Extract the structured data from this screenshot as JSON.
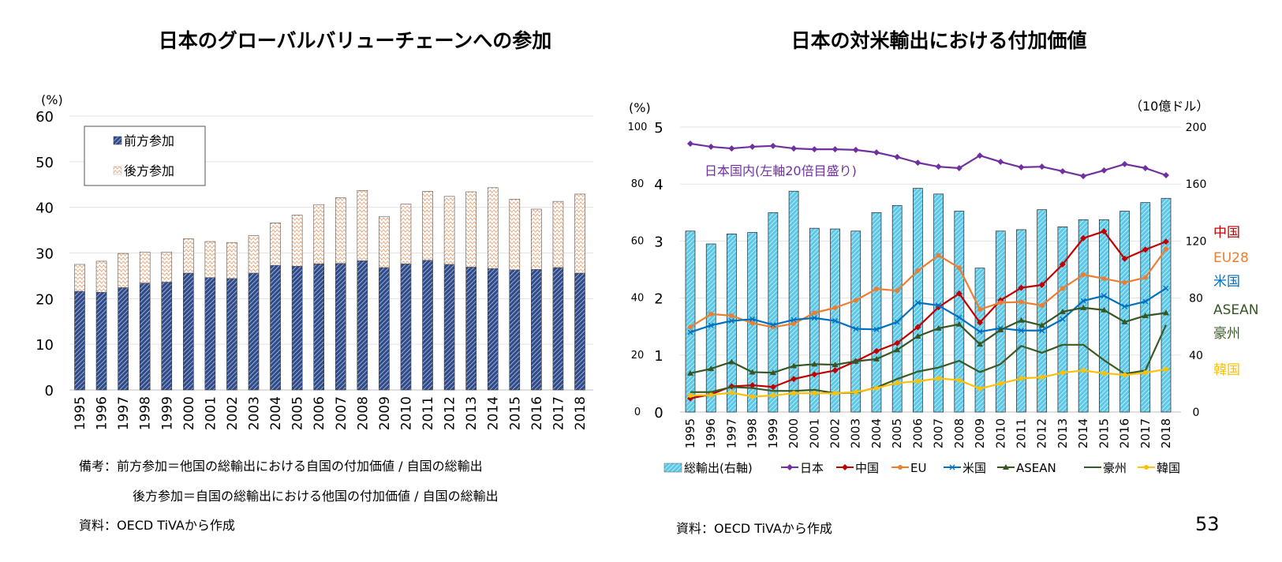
{
  "page_number": "53",
  "chart_data": [
    {
      "type": "bar",
      "stacked": true,
      "title": "日本のグローバルバリューチェーンへの参加",
      "ylabel": "(%)",
      "ylim": [
        0,
        60
      ],
      "yticks": [
        0,
        10,
        20,
        30,
        40,
        50,
        60
      ],
      "grid": true,
      "legend_position": "top-left",
      "categories": [
        "1995",
        "1996",
        "1997",
        "1998",
        "1999",
        "2000",
        "2001",
        "2002",
        "2003",
        "2004",
        "2005",
        "2006",
        "2007",
        "2008",
        "2009",
        "2010",
        "2011",
        "2012",
        "2013",
        "2014",
        "2015",
        "2016",
        "2017",
        "2018"
      ],
      "series": [
        {
          "name": "前方参加",
          "color": "#2f4b8a",
          "values": [
            21.6,
            21.4,
            22.4,
            23.4,
            23.6,
            25.6,
            24.6,
            24.4,
            25.6,
            27.3,
            27.1,
            27.6,
            27.7,
            28.3,
            26.8,
            27.6,
            28.4,
            27.5,
            26.9,
            26.6,
            26.3,
            26.4,
            26.8,
            25.6
          ]
        },
        {
          "name": "後方参加",
          "color": "#e8a070",
          "values": [
            5.9,
            6.8,
            7.5,
            6.8,
            6.6,
            7.5,
            7.9,
            7.9,
            8.2,
            9.3,
            11.2,
            13.0,
            14.4,
            15.4,
            11.2,
            13.1,
            15.1,
            14.9,
            16.5,
            17.7,
            15.5,
            13.2,
            14.5,
            17.3
          ]
        }
      ],
      "notes": [
        "備考：前方参加＝他国の総輸出における自国の付加価値 / 自国の総輸出",
        "後方参加＝自国の総輸出における他国の付加価値 / 自国の総輸出",
        "資料：OECD TiVAから作成"
      ]
    },
    {
      "type": "line",
      "title": "日本の対米輸出における付加価値",
      "ylabel": "(%)",
      "ylabel_right": "（10億ドル）",
      "ylim": [
        0,
        5
      ],
      "ylim_secondary_left": [
        0,
        100
      ],
      "ylim_right": [
        0,
        200
      ],
      "yticks": [
        0,
        1,
        2,
        3,
        4,
        5
      ],
      "yticks_secondary_left": [
        0,
        20,
        40,
        60,
        80,
        100
      ],
      "yticks_right": [
        0,
        40,
        80,
        120,
        160,
        200
      ],
      "grid": true,
      "legend_position": "bottom",
      "annotation": "日本国内(左軸20倍目盛り)",
      "categories": [
        "1995",
        "1996",
        "1997",
        "1998",
        "1999",
        "2000",
        "2001",
        "2002",
        "2003",
        "2004",
        "2005",
        "2006",
        "2007",
        "2008",
        "2009",
        "2010",
        "2011",
        "2012",
        "2013",
        "2014",
        "2015",
        "2016",
        "2017",
        "2018"
      ],
      "bar_series": {
        "name": "総輸出(右軸)",
        "color": "#5bc8e8",
        "axis": "right",
        "values": [
          127,
          118,
          125,
          126,
          140,
          155,
          129,
          128.5,
          127,
          140,
          145,
          157,
          153,
          141,
          101,
          127,
          128,
          142,
          130,
          135,
          135,
          141,
          147,
          150
        ]
      },
      "series": [
        {
          "name": "日本",
          "label": "",
          "color": "#7030a0",
          "marker": "diamond",
          "axis": "secondary_left",
          "values": [
            94.2,
            93.1,
            92.5,
            93.1,
            93.4,
            92.5,
            92.2,
            92.2,
            92.0,
            91.1,
            89.5,
            87.5,
            86.1,
            85.6,
            90.0,
            87.8,
            85.9,
            86.1,
            84.5,
            82.8,
            84.8,
            87.0,
            85.6,
            83.1
          ]
        },
        {
          "name": "中国",
          "label": "中国",
          "color": "#c00000",
          "marker": "diamond",
          "axis": "left",
          "values": [
            0.24,
            0.31,
            0.45,
            0.47,
            0.44,
            0.58,
            0.66,
            0.73,
            0.89,
            1.07,
            1.21,
            1.49,
            1.84,
            2.08,
            1.57,
            1.96,
            2.18,
            2.23,
            2.59,
            3.05,
            3.17,
            2.69,
            2.85,
            2.99
          ]
        },
        {
          "name": "EU",
          "label": "EU28",
          "color": "#ed7d31",
          "marker": "circle",
          "axis": "left",
          "values": [
            1.49,
            1.72,
            1.69,
            1.56,
            1.49,
            1.55,
            1.74,
            1.83,
            1.96,
            2.16,
            2.13,
            2.48,
            2.75,
            2.53,
            1.8,
            1.92,
            1.93,
            1.87,
            2.17,
            2.41,
            2.34,
            2.27,
            2.36,
            2.86
          ]
        },
        {
          "name": "米国",
          "label": "米国",
          "color": "#0070c0",
          "marker": "x",
          "axis": "left",
          "values": [
            1.4,
            1.52,
            1.6,
            1.63,
            1.53,
            1.62,
            1.65,
            1.6,
            1.46,
            1.45,
            1.58,
            1.92,
            1.87,
            1.66,
            1.41,
            1.47,
            1.43,
            1.43,
            1.63,
            1.95,
            2.04,
            1.85,
            1.94,
            2.17
          ]
        },
        {
          "name": "ASEAN",
          "label": "ASEAN",
          "color": "#375623",
          "marker": "triangle",
          "axis": "left",
          "values": [
            0.68,
            0.76,
            0.88,
            0.7,
            0.69,
            0.81,
            0.84,
            0.83,
            0.89,
            0.93,
            1.09,
            1.33,
            1.47,
            1.54,
            1.19,
            1.44,
            1.61,
            1.52,
            1.76,
            1.83,
            1.79,
            1.58,
            1.69,
            1.74
          ]
        },
        {
          "name": "豪州",
          "label": "豪州",
          "color": "#3b5b25",
          "marker": "none",
          "axis": "left",
          "values": [
            0.35,
            0.35,
            0.44,
            0.42,
            0.37,
            0.37,
            0.39,
            0.33,
            0.34,
            0.43,
            0.58,
            0.71,
            0.78,
            0.9,
            0.7,
            0.84,
            1.16,
            1.04,
            1.18,
            1.18,
            0.91,
            0.67,
            0.73,
            1.53
          ]
        },
        {
          "name": "韓国",
          "label": "韓国",
          "color": "#ffc000",
          "marker": "circle",
          "axis": "left",
          "values": [
            0.29,
            0.3,
            0.34,
            0.27,
            0.29,
            0.33,
            0.33,
            0.33,
            0.35,
            0.42,
            0.51,
            0.54,
            0.59,
            0.56,
            0.41,
            0.5,
            0.59,
            0.61,
            0.69,
            0.73,
            0.68,
            0.65,
            0.69,
            0.75
          ]
        }
      ],
      "notes": [
        "資料：OECD TiVAから作成"
      ]
    }
  ]
}
